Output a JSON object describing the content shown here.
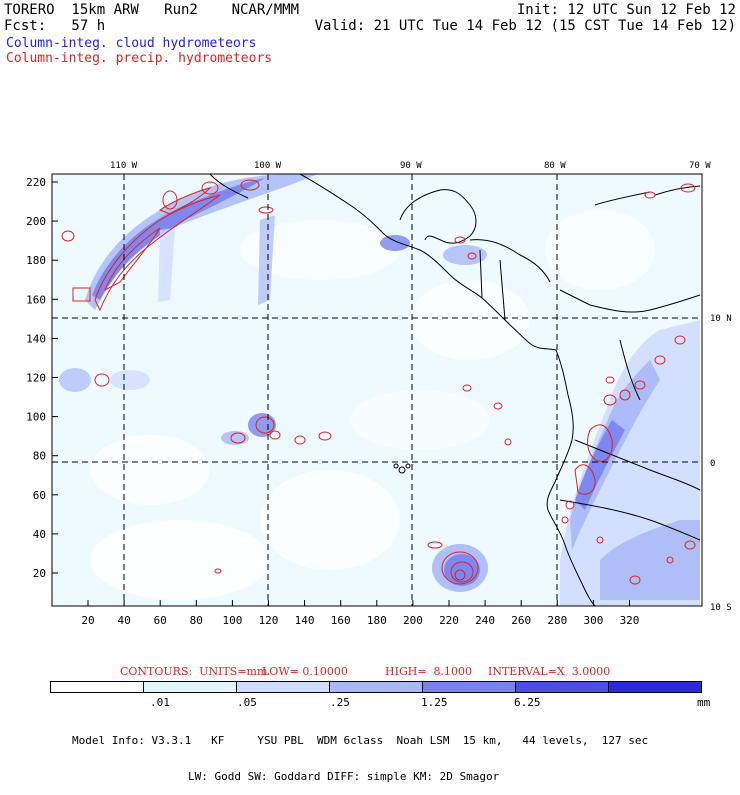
{
  "header": {
    "left_line1": "TORERO  15km ARW   Run2    NCAR/MMM",
    "left_line2": "Fcst:   57 h",
    "right_line1": "Init: 12 UTC Sun 12 Feb 12",
    "right_line2": "Valid: 21 UTC Tue 14 Feb 12 (15 CST Tue 14 Feb 12)",
    "legend_blue": "Column-integ. cloud hydrometeors",
    "legend_red": "Column-integ. precip. hydrometeors"
  },
  "colors": {
    "cloud_light": "#e0f6ff",
    "cloud_mid": "#a9b8f7",
    "cloud_strong": "#7a82ee",
    "precip_contour": "#dd2222",
    "coast": "#000000",
    "gridline": "#000000"
  },
  "map": {
    "top_lon_labels": [
      "110 W",
      "100 W",
      "90 W",
      "80 W",
      "70 W"
    ],
    "right_lat_labels": [
      "10 N",
      "0",
      "10 S"
    ],
    "left_y_ticks": [
      "220",
      "200",
      "180",
      "160",
      "140",
      "120",
      "100",
      "80",
      "60",
      "40",
      "20"
    ],
    "bottom_x_ticks": [
      "20",
      "40",
      "60",
      "80",
      "100",
      "120",
      "140",
      "160",
      "180",
      "200",
      "220",
      "240",
      "260",
      "280",
      "300",
      "320"
    ]
  },
  "contours_info": {
    "contours": "CONTOURS:  UNITS=mm",
    "low": "LOW= 0.10000",
    "high": "HIGH=  8.1000",
    "interval": "INTERVAL=X  3.0000"
  },
  "colorbar": {
    "ticks": [
      ".01",
      ".05",
      ".25",
      "1.25",
      "6.25"
    ],
    "unit": "mm",
    "colors": [
      "#ffffff",
      "#e0f6ff",
      "#cfdcff",
      "#a9b8f7",
      "#7a82ee",
      "#4c4fe4",
      "#2a2ad8"
    ]
  },
  "model_info": {
    "line1": "Model Info: V3.3.1   KF     YSU PBL  WDM 6class  Noah LSM  15 km,   44 levels,  127 sec",
    "line2": "LW: Godd SW: Goddard DIFF: simple KM: 2D Smagor"
  }
}
